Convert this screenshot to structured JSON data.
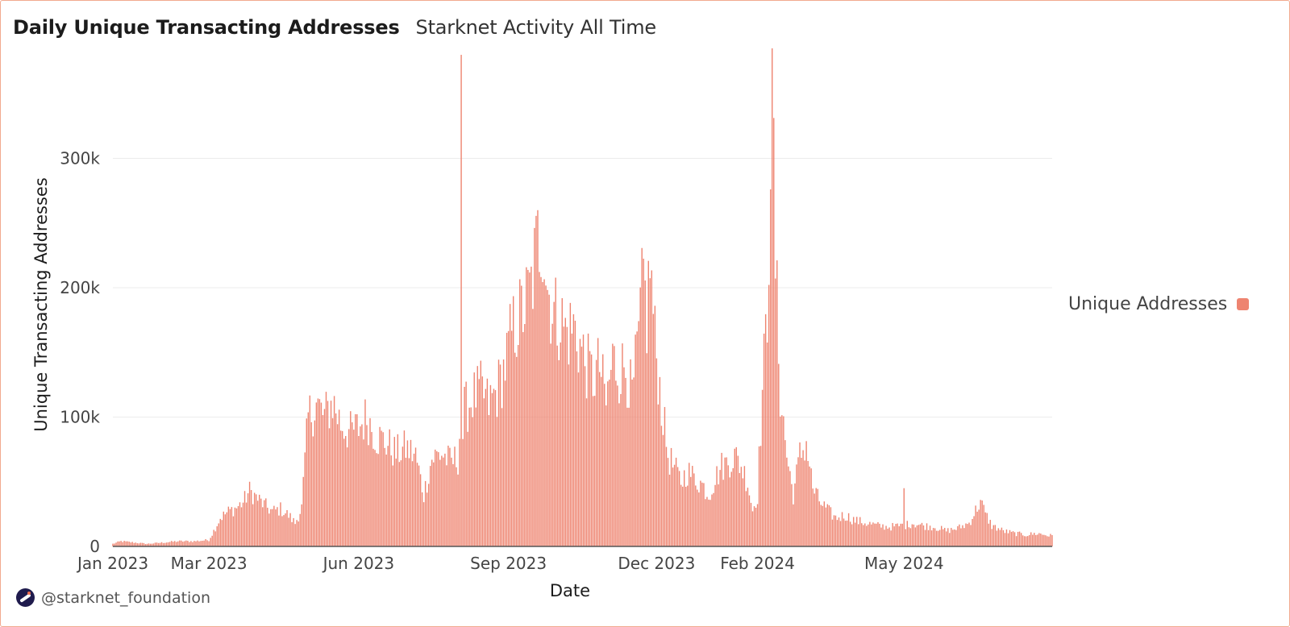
{
  "header": {
    "title": "Daily Unique Transacting Addresses",
    "subtitle": "Starknet Activity All Time"
  },
  "legend": {
    "label": "Unique Addresses",
    "color": "#ee8470"
  },
  "branding": {
    "icon": "starknet-logo-icon",
    "handle": "@starknet_foundation"
  },
  "chart_data": {
    "type": "bar",
    "title": "Daily Unique Transacting Addresses",
    "subtitle": "Starknet Activity All Time",
    "xlabel": "Date",
    "ylabel": "Unique Transacting Addresses",
    "ylim": [
      0,
      385000
    ],
    "xlim": [
      "2023-01-01",
      "2024-07-31"
    ],
    "yticks": [
      0,
      100000,
      200000,
      300000
    ],
    "ytick_labels": [
      "0",
      "100k",
      "200k",
      "300k"
    ],
    "xticks": [
      "2023-01-01",
      "2023-03-01",
      "2023-06-01",
      "2023-09-01",
      "2023-12-01",
      "2024-02-01",
      "2024-05-01"
    ],
    "xtick_labels": [
      "Jan 2023",
      "Mar 2023",
      "Jun 2023",
      "Sep 2023",
      "Dec 2023",
      "Feb 2024",
      "May 2024"
    ],
    "grid": true,
    "legend_position": "right",
    "series": [
      {
        "name": "Unique Addresses",
        "color": "#ee8470",
        "points": [
          [
            "2023-01-01",
            2000
          ],
          [
            "2023-01-06",
            4000
          ],
          [
            "2023-01-14",
            3000
          ],
          [
            "2023-01-22",
            2000
          ],
          [
            "2023-02-01",
            3000
          ],
          [
            "2023-02-10",
            4000
          ],
          [
            "2023-02-20",
            4000
          ],
          [
            "2023-03-01",
            5000
          ],
          [
            "2023-03-04",
            12000
          ],
          [
            "2023-03-08",
            22000
          ],
          [
            "2023-03-13",
            27000
          ],
          [
            "2023-03-18",
            30000
          ],
          [
            "2023-03-22",
            34000
          ],
          [
            "2023-03-26",
            43000
          ],
          [
            "2023-03-30",
            38000
          ],
          [
            "2023-04-04",
            32000
          ],
          [
            "2023-04-09",
            27000
          ],
          [
            "2023-04-14",
            29000
          ],
          [
            "2023-04-19",
            24000
          ],
          [
            "2023-04-23",
            18000
          ],
          [
            "2023-04-27",
            30000
          ],
          [
            "2023-05-01",
            100000
          ],
          [
            "2023-05-06",
            110000
          ],
          [
            "2023-05-11",
            100000
          ],
          [
            "2023-05-16",
            112000
          ],
          [
            "2023-05-21",
            95000
          ],
          [
            "2023-05-27",
            88000
          ],
          [
            "2023-06-01",
            92000
          ],
          [
            "2023-06-06",
            100000
          ],
          [
            "2023-06-12",
            85000
          ],
          [
            "2023-06-18",
            80000
          ],
          [
            "2023-06-24",
            72000
          ],
          [
            "2023-06-30",
            76000
          ],
          [
            "2023-07-06",
            70000
          ],
          [
            "2023-07-11",
            40000
          ],
          [
            "2023-07-16",
            68000
          ],
          [
            "2023-07-22",
            72000
          ],
          [
            "2023-07-27",
            65000
          ],
          [
            "2023-08-01",
            68000
          ],
          [
            "2023-08-03",
            380000
          ],
          [
            "2023-08-05",
            105000
          ],
          [
            "2023-08-10",
            115000
          ],
          [
            "2023-08-15",
            120000
          ],
          [
            "2023-08-20",
            110000
          ],
          [
            "2023-08-25",
            120000
          ],
          [
            "2023-08-30",
            140000
          ],
          [
            "2023-09-03",
            165000
          ],
          [
            "2023-09-07",
            175000
          ],
          [
            "2023-09-11",
            185000
          ],
          [
            "2023-09-15",
            200000
          ],
          [
            "2023-09-19",
            235000
          ],
          [
            "2023-09-22",
            245000
          ],
          [
            "2023-09-25",
            200000
          ],
          [
            "2023-09-29",
            180000
          ],
          [
            "2023-10-03",
            175000
          ],
          [
            "2023-10-07",
            165000
          ],
          [
            "2023-10-11",
            170000
          ],
          [
            "2023-10-15",
            155000
          ],
          [
            "2023-10-19",
            140000
          ],
          [
            "2023-10-23",
            130000
          ],
          [
            "2023-10-27",
            140000
          ],
          [
            "2023-10-31",
            110000
          ],
          [
            "2023-11-04",
            145000
          ],
          [
            "2023-11-08",
            135000
          ],
          [
            "2023-11-12",
            140000
          ],
          [
            "2023-11-16",
            115000
          ],
          [
            "2023-11-20",
            160000
          ],
          [
            "2023-11-23",
            210000
          ],
          [
            "2023-11-25",
            175000
          ],
          [
            "2023-11-27",
            220000
          ],
          [
            "2023-11-30",
            160000
          ],
          [
            "2023-12-04",
            110000
          ],
          [
            "2023-12-08",
            70000
          ],
          [
            "2023-12-12",
            60000
          ],
          [
            "2023-12-16",
            50000
          ],
          [
            "2023-12-20",
            58000
          ],
          [
            "2023-12-25",
            52000
          ],
          [
            "2023-12-29",
            48000
          ],
          [
            "2024-01-02",
            40000
          ],
          [
            "2024-01-06",
            52000
          ],
          [
            "2024-01-10",
            62000
          ],
          [
            "2024-01-14",
            65000
          ],
          [
            "2024-01-18",
            70000
          ],
          [
            "2024-01-22",
            62000
          ],
          [
            "2024-01-26",
            50000
          ],
          [
            "2024-01-29",
            28000
          ],
          [
            "2024-02-01",
            40000
          ],
          [
            "2024-02-04",
            120000
          ],
          [
            "2024-02-07",
            180000
          ],
          [
            "2024-02-10",
            375000
          ],
          [
            "2024-02-12",
            220000
          ],
          [
            "2024-02-15",
            120000
          ],
          [
            "2024-02-19",
            70000
          ],
          [
            "2024-02-23",
            40000
          ],
          [
            "2024-02-27",
            70000
          ],
          [
            "2024-03-02",
            80000
          ],
          [
            "2024-03-06",
            45000
          ],
          [
            "2024-03-10",
            35000
          ],
          [
            "2024-03-15",
            28000
          ],
          [
            "2024-03-20",
            22000
          ],
          [
            "2024-03-26",
            24000
          ],
          [
            "2024-04-01",
            20000
          ],
          [
            "2024-04-08",
            18000
          ],
          [
            "2024-04-15",
            16000
          ],
          [
            "2024-04-22",
            15000
          ],
          [
            "2024-04-29",
            16000
          ],
          [
            "2024-05-01",
            45000
          ],
          [
            "2024-05-06",
            18000
          ],
          [
            "2024-05-13",
            16000
          ],
          [
            "2024-05-20",
            15000
          ],
          [
            "2024-05-27",
            12000
          ],
          [
            "2024-06-03",
            14000
          ],
          [
            "2024-06-10",
            18000
          ],
          [
            "2024-06-17",
            35000
          ],
          [
            "2024-06-20",
            25000
          ],
          [
            "2024-06-24",
            16000
          ],
          [
            "2024-07-01",
            12000
          ],
          [
            "2024-07-08",
            10000
          ],
          [
            "2024-07-15",
            9000
          ],
          [
            "2024-07-22",
            10000
          ],
          [
            "2024-07-31",
            8000
          ]
        ]
      }
    ]
  }
}
